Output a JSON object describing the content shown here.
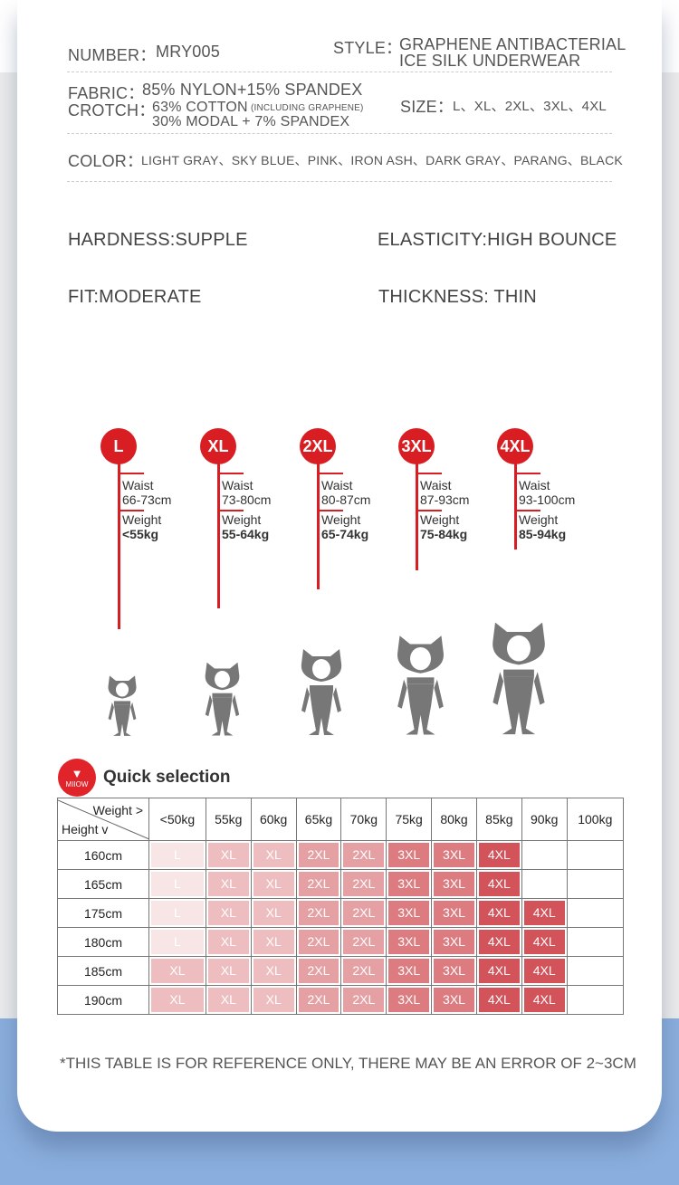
{
  "specs": {
    "number_label": "NUMBER：",
    "number": "MRY005",
    "style_label": "STYLE：",
    "style_line1": "GRAPHENE ANTIBACTERIAL",
    "style_line2": "ICE SILK UNDERWEAR",
    "fabric_label": "FABRIC：",
    "fabric": "85% NYLON+15% SPANDEX",
    "crotch_label": "CROTCH：",
    "crotch_line1": "63% COTTON",
    "crotch_note": "(INCLUDING GRAPHENE)",
    "crotch_line2": "30% MODAL + 7% SPANDEX",
    "size_label": "SIZE：",
    "sizes": "L、XL、2XL、3XL、4XL",
    "color_label": "COLOR：",
    "colors": "LIGHT GRAY、SKY BLUE、PINK、IRON ASH、DARK GRAY、PARANG、BLACK"
  },
  "attributes": {
    "hardness": "HARDNESS:SUPPLE",
    "elasticity": "ELASTICITY:HIGH BOUNCE",
    "fit": "FIT:MODERATE",
    "thickness": "THICKNESS: THIN"
  },
  "size_guide": [
    {
      "size": "L",
      "waist_label": "Waist",
      "waist": "66-73cm",
      "weight_label": "Weight",
      "weight": "<55kg"
    },
    {
      "size": "XL",
      "waist_label": "Waist",
      "waist": "73-80cm",
      "weight_label": "Weight",
      "weight": "55-64kg"
    },
    {
      "size": "2XL",
      "waist_label": "Waist",
      "waist": "80-87cm",
      "weight_label": "Weight",
      "weight": "65-74kg"
    },
    {
      "size": "3XL",
      "waist_label": "Waist",
      "waist": "87-93cm",
      "weight_label": "Weight",
      "weight": "75-84kg"
    },
    {
      "size": "4XL",
      "waist_label": "Waist",
      "waist": "93-100cm",
      "weight_label": "Weight",
      "weight": "85-94kg"
    }
  ],
  "quick": {
    "logo_text": "MIIOW",
    "title": "Quick selection",
    "weight_header": "Weight >",
    "height_header": "Height v",
    "weights": [
      "<50kg",
      "55kg",
      "60kg",
      "65kg",
      "70kg",
      "75kg",
      "80kg",
      "85kg",
      "90kg",
      "100kg"
    ],
    "rows": [
      {
        "height": "160cm",
        "cells": [
          "L",
          "XL",
          "XL",
          "2XL",
          "2XL",
          "3XL",
          "3XL",
          "4XL",
          "",
          ""
        ]
      },
      {
        "height": "165cm",
        "cells": [
          "L",
          "XL",
          "XL",
          "2XL",
          "2XL",
          "3XL",
          "3XL",
          "4XL",
          "",
          ""
        ]
      },
      {
        "height": "175cm",
        "cells": [
          "L",
          "XL",
          "XL",
          "2XL",
          "2XL",
          "3XL",
          "3XL",
          "4XL",
          "4XL",
          ""
        ]
      },
      {
        "height": "180cm",
        "cells": [
          "L",
          "XL",
          "XL",
          "2XL",
          "2XL",
          "3XL",
          "3XL",
          "4XL",
          "4XL",
          ""
        ]
      },
      {
        "height": "185cm",
        "cells": [
          "XL",
          "XL",
          "XL",
          "2XL",
          "2XL",
          "3XL",
          "3XL",
          "4XL",
          "4XL",
          ""
        ]
      },
      {
        "height": "190cm",
        "cells": [
          "XL",
          "XL",
          "XL",
          "2XL",
          "2XL",
          "3XL",
          "3XL",
          "4XL",
          "4XL",
          ""
        ]
      }
    ],
    "colors": {
      "L": "#f8e6e7",
      "XL": "#eebdc0",
      "2XL": "#e5a0a4",
      "3XL": "#dc7c80",
      "4XL": "#d2535a"
    }
  },
  "note": "*THIS TABLE IS FOR REFERENCE ONLY, THERE MAY BE AN ERROR OF 2~3CM",
  "accent": "#d81e22"
}
